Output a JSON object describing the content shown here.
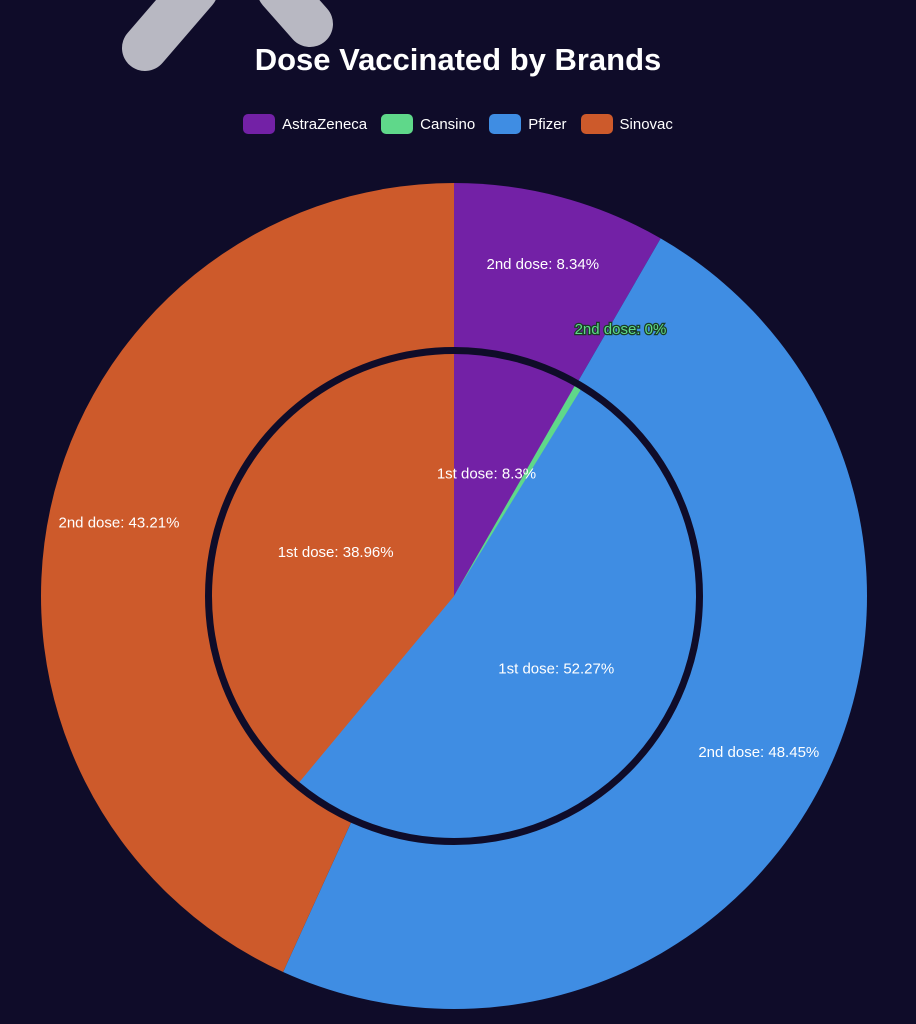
{
  "colors": {
    "background": "#0f0c29",
    "AstraZeneca": "#7321a6",
    "Cansino": "#5fd88a",
    "Pfizer": "#3f8de3",
    "Sinovac": "#cd5a2b",
    "mascot": "#b8b8c2"
  },
  "chart_data": {
    "type": "pie",
    "title": "Dose Vaccinated by Brands",
    "legend_position": "top",
    "categories": [
      "AstraZeneca",
      "Cansino",
      "Pfizer",
      "Sinovac"
    ],
    "series": [
      {
        "name": "1st dose",
        "ring": "inner",
        "values": [
          8.3,
          0.47,
          52.27,
          38.96
        ],
        "labels": [
          "1st dose: 8.3%",
          "",
          "1st dose: 52.27%",
          "1st dose: 38.96%"
        ]
      },
      {
        "name": "2nd dose",
        "ring": "outer",
        "values": [
          8.34,
          0,
          48.45,
          43.21
        ],
        "labels": [
          "2nd dose: 8.34%",
          "2nd dose: 0%",
          "2nd dose: 48.45%",
          "2nd dose: 43.21%"
        ]
      }
    ]
  }
}
